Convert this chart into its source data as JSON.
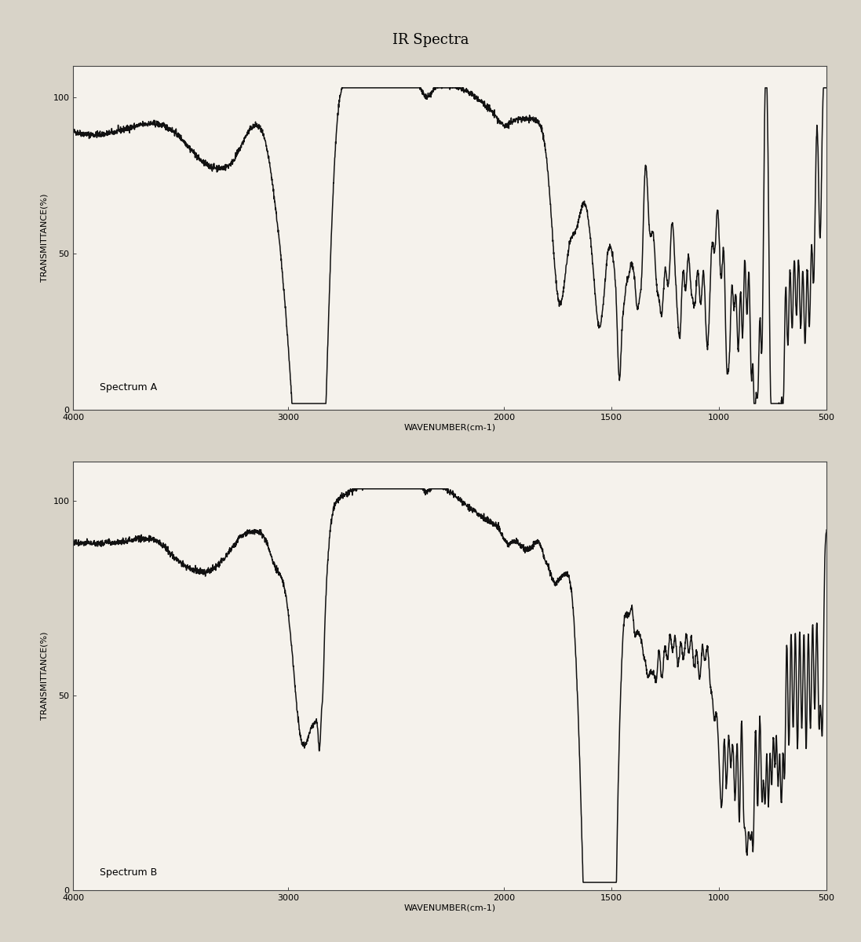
{
  "title": "IR Spectra",
  "title_fontsize": 13,
  "background_color": "#d8d3c8",
  "plot_bg_color": "#f5f2ec",
  "line_color": "#111111",
  "line_width": 1.1,
  "xlabel": "WAVENUMBER(cm-1)",
  "ylabel": "TRANSMITTANCE(%)",
  "spectrum_A_label": "Spectrum A",
  "spectrum_B_label": "Spectrum B"
}
